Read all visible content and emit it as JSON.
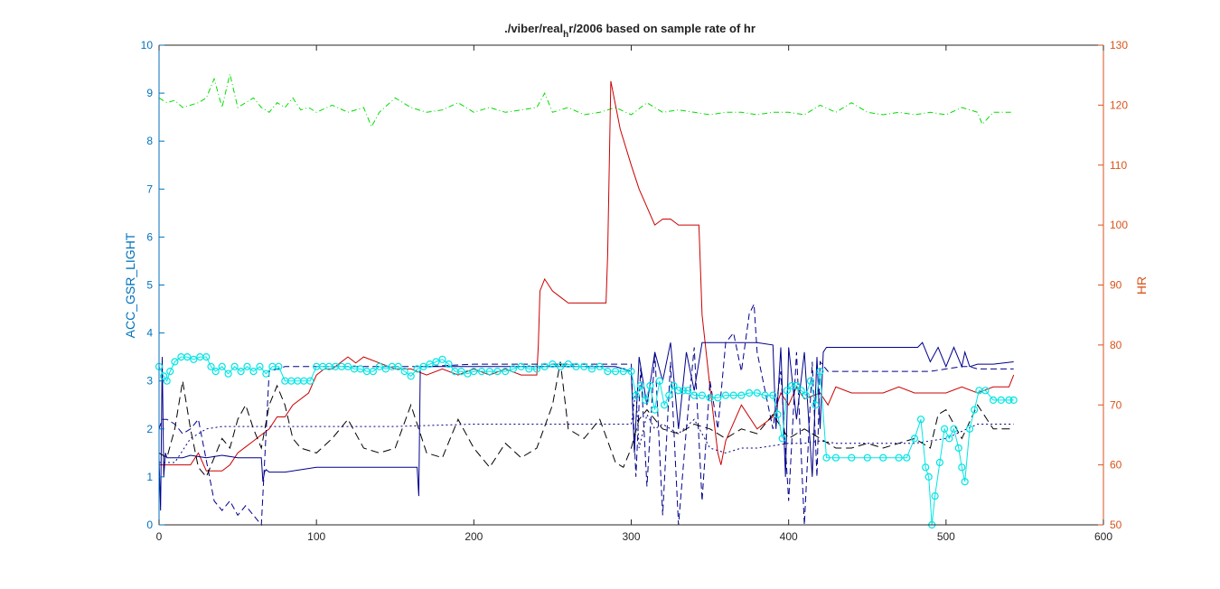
{
  "chart_data": {
    "type": "line",
    "title": "./viber/real",
    "title_sub": "h",
    "title_rest": "r/2006 based on sample rate of hr",
    "left_axis": {
      "label": "ACC_GSR_LIGHT",
      "range": [
        0,
        10
      ],
      "ticks": [
        0,
        1,
        2,
        3,
        4,
        5,
        6,
        7,
        8,
        9,
        10
      ],
      "color": "#0072BD"
    },
    "right_axis": {
      "label": "HR",
      "range": [
        50,
        130
      ],
      "ticks": [
        50,
        60,
        70,
        80,
        90,
        100,
        110,
        120,
        130
      ],
      "color": "#D95319"
    },
    "x_axis": {
      "range": [
        0,
        600
      ],
      "ticks": [
        0,
        100,
        200,
        300,
        400,
        500,
        600
      ]
    },
    "series": [
      {
        "axis": "left",
        "color": "#00DD00",
        "dash": "6,3,1,3",
        "marker": "none",
        "x": [
          0,
          5,
          10,
          15,
          20,
          25,
          30,
          35,
          40,
          45,
          50,
          55,
          60,
          65,
          70,
          75,
          80,
          85,
          90,
          95,
          100,
          110,
          120,
          130,
          135,
          140,
          150,
          160,
          170,
          180,
          190,
          200,
          210,
          220,
          230,
          240,
          245,
          250,
          260,
          270,
          280,
          290,
          300,
          310,
          320,
          330,
          340,
          350,
          360,
          370,
          380,
          390,
          400,
          410,
          420,
          430,
          440,
          450,
          460,
          470,
          480,
          490,
          500,
          510,
          520,
          523,
          530,
          543
        ],
        "y": [
          8.9,
          8.8,
          8.85,
          8.7,
          8.75,
          8.8,
          8.9,
          9.3,
          8.7,
          9.4,
          8.7,
          8.8,
          8.9,
          8.7,
          8.6,
          8.8,
          8.7,
          8.9,
          8.65,
          8.7,
          8.6,
          8.75,
          8.6,
          8.7,
          8.3,
          8.6,
          8.9,
          8.7,
          8.6,
          8.65,
          8.8,
          8.6,
          8.7,
          8.6,
          8.65,
          8.7,
          9.0,
          8.6,
          8.7,
          8.55,
          8.6,
          8.7,
          8.55,
          8.8,
          8.6,
          8.65,
          8.6,
          8.55,
          8.6,
          8.6,
          8.55,
          8.6,
          8.6,
          8.55,
          8.75,
          8.6,
          8.8,
          8.6,
          8.55,
          8.6,
          8.55,
          8.6,
          8.55,
          8.7,
          8.6,
          8.35,
          8.6,
          8.6
        ]
      },
      {
        "axis": "right",
        "color": "#CC0000",
        "dash": "",
        "marker": "none",
        "x": [
          0,
          15,
          20,
          25,
          30,
          40,
          45,
          50,
          55,
          60,
          65,
          70,
          75,
          80,
          85,
          95,
          100,
          105,
          110,
          115,
          120,
          125,
          130,
          140,
          150,
          160,
          170,
          180,
          190,
          200,
          210,
          220,
          230,
          240,
          241,
          242,
          245,
          250,
          255,
          260,
          270,
          280,
          284,
          285,
          287,
          290,
          293,
          300,
          305,
          310,
          315,
          320,
          325,
          330,
          340,
          343,
          345,
          350,
          355,
          357,
          360,
          370,
          380,
          390,
          395,
          400,
          405,
          410,
          420,
          425,
          430,
          440,
          450,
          460,
          470,
          480,
          490,
          500,
          510,
          520,
          530,
          540,
          543
        ],
        "y": [
          60,
          60,
          60,
          62,
          59,
          59,
          60,
          62,
          63,
          64,
          65,
          66,
          68,
          68,
          70,
          72,
          75,
          76,
          76,
          77,
          78,
          77,
          78,
          77,
          76,
          76,
          75,
          76,
          75,
          76,
          75,
          76,
          75,
          75,
          80,
          89,
          91,
          89,
          88,
          87,
          87,
          87,
          87,
          95,
          124,
          120,
          116,
          110,
          106,
          103,
          100,
          101,
          101,
          100,
          100,
          100,
          85,
          73,
          62,
          60,
          64,
          70,
          66,
          68,
          72,
          70,
          73,
          71,
          72,
          70,
          73,
          72,
          72,
          72,
          73,
          72,
          72,
          72,
          73,
          72,
          73,
          73,
          75
        ]
      },
      {
        "axis": "left",
        "color": "#00008B",
        "dash": "",
        "marker": "none",
        "x": [
          0,
          1,
          2,
          3,
          4,
          5,
          8,
          10,
          15,
          20,
          30,
          40,
          50,
          60,
          65,
          66,
          67,
          68,
          70,
          80,
          100,
          120,
          140,
          160,
          164,
          165,
          166,
          170,
          200,
          250,
          290,
          300,
          302,
          305,
          310,
          315,
          320,
          325,
          330,
          335,
          340,
          345,
          350,
          360,
          370,
          380,
          390,
          392,
          395,
          398,
          400,
          405,
          410,
          415,
          418,
          420,
          422,
          424,
          480,
          482,
          485,
          490,
          495,
          500,
          505,
          510,
          512,
          515,
          520,
          530,
          543
        ],
        "y": [
          1.4,
          0.3,
          3.5,
          1.0,
          1.5,
          1.4,
          1.4,
          1.4,
          1.4,
          1.45,
          1.4,
          1.45,
          1.4,
          1.4,
          1.4,
          0.9,
          1.1,
          1.15,
          1.1,
          1.1,
          1.2,
          1.2,
          1.2,
          1.2,
          1.2,
          0.6,
          3.3,
          3.3,
          3.3,
          3.3,
          3.3,
          3.2,
          1.5,
          3.5,
          2.5,
          3.6,
          3.0,
          3.8,
          2.0,
          3.6,
          2.8,
          3.8,
          3.8,
          3.8,
          3.8,
          3.8,
          3.75,
          2.0,
          3.7,
          1.0,
          3.7,
          2.2,
          3.6,
          1.0,
          3.5,
          2.0,
          3.6,
          3.7,
          3.7,
          3.7,
          3.8,
          3.4,
          3.7,
          3.3,
          3.7,
          3.3,
          3.6,
          3.3,
          3.35,
          3.35,
          3.4
        ]
      },
      {
        "axis": "left",
        "color": "#00008B",
        "dash": "7,4",
        "marker": "none",
        "x": [
          0,
          2,
          5,
          10,
          15,
          20,
          25,
          35,
          40,
          45,
          50,
          55,
          60,
          65,
          70,
          80,
          100,
          150,
          165,
          170,
          200,
          250,
          300,
          303,
          306,
          310,
          315,
          320,
          325,
          330,
          335,
          340,
          345,
          350,
          355,
          360,
          365,
          370,
          375,
          378,
          380,
          390,
          395,
          400,
          405,
          410,
          415,
          418,
          420,
          425,
          430,
          480,
          490,
          500,
          510,
          515,
          520,
          543
        ],
        "y": [
          2.0,
          2.2,
          2.2,
          2.1,
          1.9,
          2.0,
          2.2,
          0.5,
          0.3,
          0.5,
          0.2,
          0.4,
          0.2,
          0.0,
          3.2,
          3.3,
          3.3,
          3.3,
          3.3,
          3.3,
          3.35,
          3.35,
          3.35,
          1.0,
          3.3,
          0.8,
          3.6,
          0.2,
          3.4,
          0.0,
          2.0,
          3.7,
          0.5,
          3.0,
          2.0,
          3.8,
          4.0,
          3.2,
          4.4,
          4.6,
          3.6,
          2.0,
          3.2,
          0.5,
          3.6,
          0.0,
          3.4,
          1.0,
          3.4,
          3.2,
          3.2,
          3.2,
          3.2,
          3.25,
          3.3,
          3.3,
          3.25,
          3.25
        ]
      },
      {
        "axis": "left",
        "color": "#000000",
        "dash": "9,5",
        "marker": "none",
        "x": [
          0,
          5,
          10,
          15,
          20,
          25,
          30,
          35,
          40,
          45,
          50,
          55,
          60,
          65,
          70,
          75,
          80,
          85,
          90,
          100,
          110,
          120,
          130,
          140,
          150,
          160,
          170,
          180,
          190,
          200,
          210,
          220,
          230,
          240,
          250,
          255,
          260,
          270,
          280,
          290,
          295,
          300,
          305,
          310,
          320,
          330,
          340,
          350,
          360,
          370,
          380,
          390,
          400,
          410,
          420,
          430,
          440,
          450,
          460,
          470,
          480,
          490,
          495,
          500,
          510,
          520,
          530,
          543
        ],
        "y": [
          1.5,
          1.4,
          2.0,
          3.0,
          2.0,
          1.2,
          1.0,
          1.4,
          1.8,
          1.6,
          2.2,
          2.5,
          2.0,
          1.6,
          2.5,
          2.9,
          2.5,
          1.8,
          1.6,
          1.5,
          1.8,
          2.2,
          1.6,
          1.5,
          1.6,
          2.5,
          1.5,
          1.4,
          2.2,
          1.6,
          1.2,
          1.7,
          1.4,
          1.6,
          2.5,
          3.4,
          2.0,
          1.8,
          2.2,
          1.3,
          1.2,
          1.6,
          2.2,
          2.4,
          2.0,
          1.9,
          2.1,
          2.0,
          1.8,
          2.0,
          1.9,
          2.3,
          1.8,
          2.0,
          1.8,
          1.6,
          1.6,
          1.7,
          1.6,
          1.7,
          1.8,
          1.6,
          2.3,
          2.4,
          1.8,
          2.5,
          2.0,
          2.0
        ]
      },
      {
        "axis": "left",
        "color": "#000080",
        "dash": "2,3",
        "marker": "none",
        "x": [
          0,
          5,
          10,
          20,
          30,
          40,
          100,
          150,
          200,
          250,
          300,
          303,
          305,
          310,
          315,
          320,
          330,
          340,
          350,
          360,
          370,
          380,
          390,
          400,
          410,
          420,
          430,
          440,
          460,
          480,
          500,
          520,
          543
        ],
        "y": [
          1.3,
          1.3,
          1.3,
          1.8,
          2.0,
          2.05,
          2.05,
          2.05,
          2.1,
          2.1,
          2.1,
          2.8,
          1.6,
          2.3,
          2.0,
          2.1,
          1.9,
          2.2,
          1.6,
          1.5,
          1.6,
          1.6,
          1.65,
          1.7,
          1.7,
          1.75,
          1.7,
          1.7,
          1.7,
          1.7,
          1.8,
          2.1,
          2.1
        ]
      },
      {
        "axis": "left",
        "color": "#00E5E5",
        "dash": "",
        "marker": "circle",
        "x": [
          0,
          3,
          5,
          7,
          10,
          14,
          18,
          22,
          26,
          30,
          33,
          36,
          40,
          44,
          48,
          52,
          56,
          60,
          64,
          68,
          72,
          76,
          80,
          84,
          88,
          92,
          96,
          100,
          104,
          108,
          112,
          116,
          120,
          124,
          128,
          132,
          136,
          140,
          144,
          148,
          152,
          156,
          160,
          164,
          168,
          172,
          176,
          180,
          184,
          188,
          192,
          196,
          200,
          205,
          210,
          215,
          220,
          225,
          230,
          235,
          240,
          245,
          250,
          255,
          260,
          265,
          270,
          275,
          280,
          285,
          290,
          295,
          300,
          303,
          306,
          309,
          312,
          315,
          318,
          321,
          324,
          327,
          330,
          333,
          336,
          340,
          345,
          350,
          355,
          360,
          365,
          370,
          375,
          380,
          385,
          390,
          393,
          396,
          399,
          402,
          405,
          408,
          411,
          414,
          417,
          420,
          424,
          430,
          440,
          450,
          460,
          470,
          475,
          480,
          484,
          487,
          489,
          491,
          493,
          496,
          499,
          502,
          505,
          508,
          510,
          512,
          515,
          518,
          521,
          525,
          530,
          535,
          540,
          543
        ],
        "y": [
          3.3,
          3.1,
          3.0,
          3.2,
          3.4,
          3.5,
          3.5,
          3.45,
          3.5,
          3.5,
          3.3,
          3.2,
          3.3,
          3.15,
          3.3,
          3.2,
          3.3,
          3.2,
          3.3,
          3.15,
          3.3,
          3.3,
          3.0,
          3.0,
          3.0,
          3.0,
          3.0,
          3.3,
          3.3,
          3.3,
          3.3,
          3.3,
          3.3,
          3.25,
          3.25,
          3.2,
          3.2,
          3.3,
          3.25,
          3.3,
          3.3,
          3.2,
          3.1,
          3.25,
          3.3,
          3.35,
          3.4,
          3.45,
          3.35,
          3.2,
          3.2,
          3.15,
          3.2,
          3.2,
          3.2,
          3.2,
          3.2,
          3.25,
          3.3,
          3.25,
          3.25,
          3.3,
          3.35,
          3.3,
          3.35,
          3.3,
          3.3,
          3.25,
          3.3,
          3.2,
          3.2,
          3.2,
          3.2,
          2.7,
          2.9,
          2.6,
          2.9,
          2.4,
          3.0,
          2.5,
          2.7,
          2.9,
          2.8,
          2.8,
          2.8,
          2.7,
          2.7,
          2.65,
          2.65,
          2.7,
          2.7,
          2.7,
          2.75,
          2.75,
          2.7,
          2.7,
          2.3,
          1.8,
          2.8,
          2.9,
          2.9,
          2.8,
          2.7,
          3.0,
          2.5,
          3.2,
          1.4,
          1.4,
          1.4,
          1.4,
          1.4,
          1.4,
          1.4,
          1.8,
          2.2,
          1.2,
          1.0,
          0.0,
          0.6,
          1.3,
          2.0,
          1.8,
          2.0,
          1.6,
          1.2,
          0.9,
          2.0,
          2.4,
          2.8,
          2.8,
          2.6,
          2.6,
          2.6,
          2.6
        ]
      }
    ]
  }
}
